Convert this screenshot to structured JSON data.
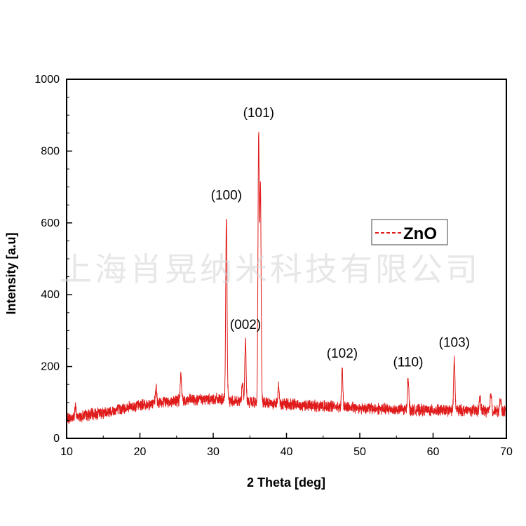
{
  "chart_data": {
    "type": "line",
    "xlabel": "2 Theta [deg]",
    "ylabel": "Intensity [a.u]",
    "xlim": [
      10,
      70
    ],
    "ylim": [
      0,
      1000
    ],
    "x_ticks": [
      10,
      20,
      30,
      40,
      50,
      60,
      70
    ],
    "y_ticks": [
      0,
      200,
      400,
      600,
      800,
      1000
    ],
    "grid": false,
    "legend_position": "right",
    "series": [
      {
        "name": "ZnO",
        "color": "#e01b1b",
        "baseline": [
          [
            10,
            55
          ],
          [
            15,
            72
          ],
          [
            20,
            92
          ],
          [
            25,
            105
          ],
          [
            30,
            110
          ],
          [
            34,
            102
          ],
          [
            40,
            95
          ],
          [
            45,
            90
          ],
          [
            50,
            85
          ],
          [
            55,
            80
          ],
          [
            60,
            78
          ],
          [
            65,
            78
          ],
          [
            70,
            75
          ]
        ],
        "peaks": [
          {
            "x": 11.2,
            "y": 85
          },
          {
            "x": 22.2,
            "y": 140
          },
          {
            "x": 25.6,
            "y": 175
          },
          {
            "x": 31.8,
            "y": 618
          },
          {
            "x": 34.0,
            "y": 160
          },
          {
            "x": 34.4,
            "y": 272
          },
          {
            "x": 36.2,
            "y": 842
          },
          {
            "x": 36.45,
            "y": 690
          },
          {
            "x": 38.9,
            "y": 150
          },
          {
            "x": 47.6,
            "y": 192
          },
          {
            "x": 56.6,
            "y": 172
          },
          {
            "x": 62.9,
            "y": 220
          },
          {
            "x": 66.4,
            "y": 115
          },
          {
            "x": 67.9,
            "y": 128
          },
          {
            "x": 69.2,
            "y": 110
          }
        ]
      }
    ],
    "annotations": [
      {
        "text": "(100)",
        "x": 31.8,
        "y": 665
      },
      {
        "text": "(101)",
        "x": 36.2,
        "y": 895
      },
      {
        "text": "(002)",
        "x": 34.4,
        "y": 305
      },
      {
        "text": "(102)",
        "x": 47.6,
        "y": 225
      },
      {
        "text": "(110)",
        "x": 56.6,
        "y": 200
      },
      {
        "text": "(103)",
        "x": 62.9,
        "y": 255
      }
    ]
  },
  "legend": {
    "label": "ZnO",
    "line_color": "#e01b1b"
  },
  "watermark": "上海肖晃纳米科技有限公司"
}
